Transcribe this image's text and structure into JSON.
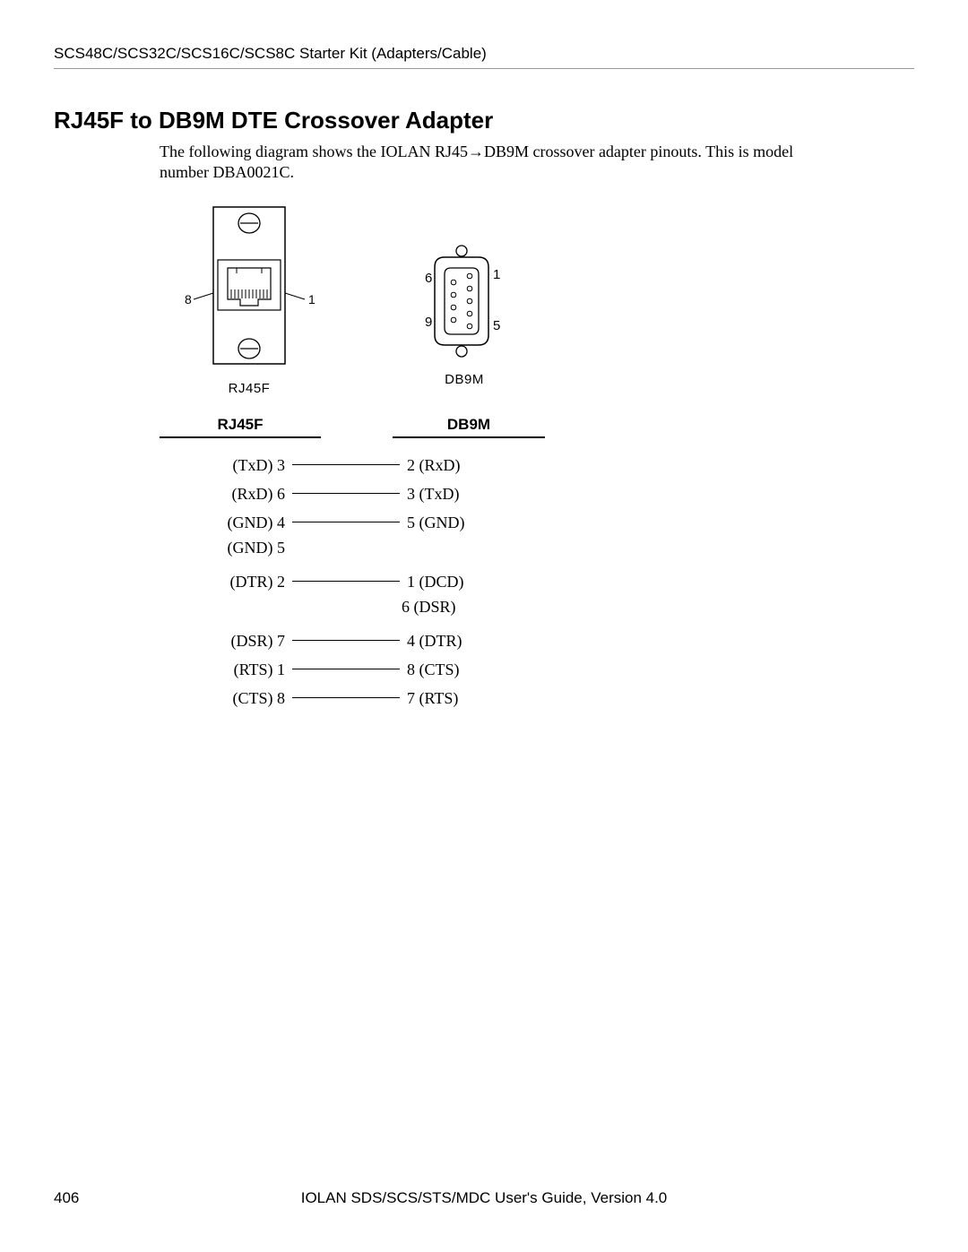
{
  "header": "SCS48C/SCS32C/SCS16C/SCS8C Starter Kit (Adapters/Cable)",
  "title": "RJ45F to DB9M DTE Crossover Adapter",
  "intro": "The following diagram shows the IOLAN RJ45→DB9M crossover adapter pinouts. This is model number DBA0021C.",
  "connectors": {
    "rj45": {
      "label": "RJ45F",
      "left_pin": "8",
      "right_pin": "1"
    },
    "db9": {
      "label": "DB9M",
      "top_left": "6",
      "top_right": "1",
      "bottom_left": "9",
      "bottom_right": "5"
    }
  },
  "pinout": {
    "left_header": "RJ45F",
    "right_header": "DB9M",
    "rows": [
      {
        "left": "(TxD) 3",
        "right": "2 (RxD)",
        "sub_left": "",
        "sub_right": ""
      },
      {
        "left": "(RxD) 6",
        "right": "3 (TxD)",
        "sub_left": "",
        "sub_right": ""
      },
      {
        "left": "(GND) 4",
        "right": "5 (GND)",
        "sub_left": "(GND) 5",
        "sub_right": ""
      },
      {
        "left": "(DTR) 2",
        "right": "1 (DCD)",
        "sub_left": "",
        "sub_right": "6 (DSR)"
      },
      {
        "left": "(DSR) 7",
        "right": "4 (DTR)",
        "sub_left": "",
        "sub_right": ""
      },
      {
        "left": "(RTS) 1",
        "right": "8 (CTS)",
        "sub_left": "",
        "sub_right": ""
      },
      {
        "left": "(CTS) 8",
        "right": "7 (RTS)",
        "sub_left": "",
        "sub_right": ""
      }
    ]
  },
  "footer": {
    "page": "406",
    "doc": "IOLAN SDS/SCS/STS/MDC User's Guide, Version 4.0"
  },
  "colors": {
    "text": "#000000",
    "rule": "#999999",
    "background": "#ffffff"
  }
}
